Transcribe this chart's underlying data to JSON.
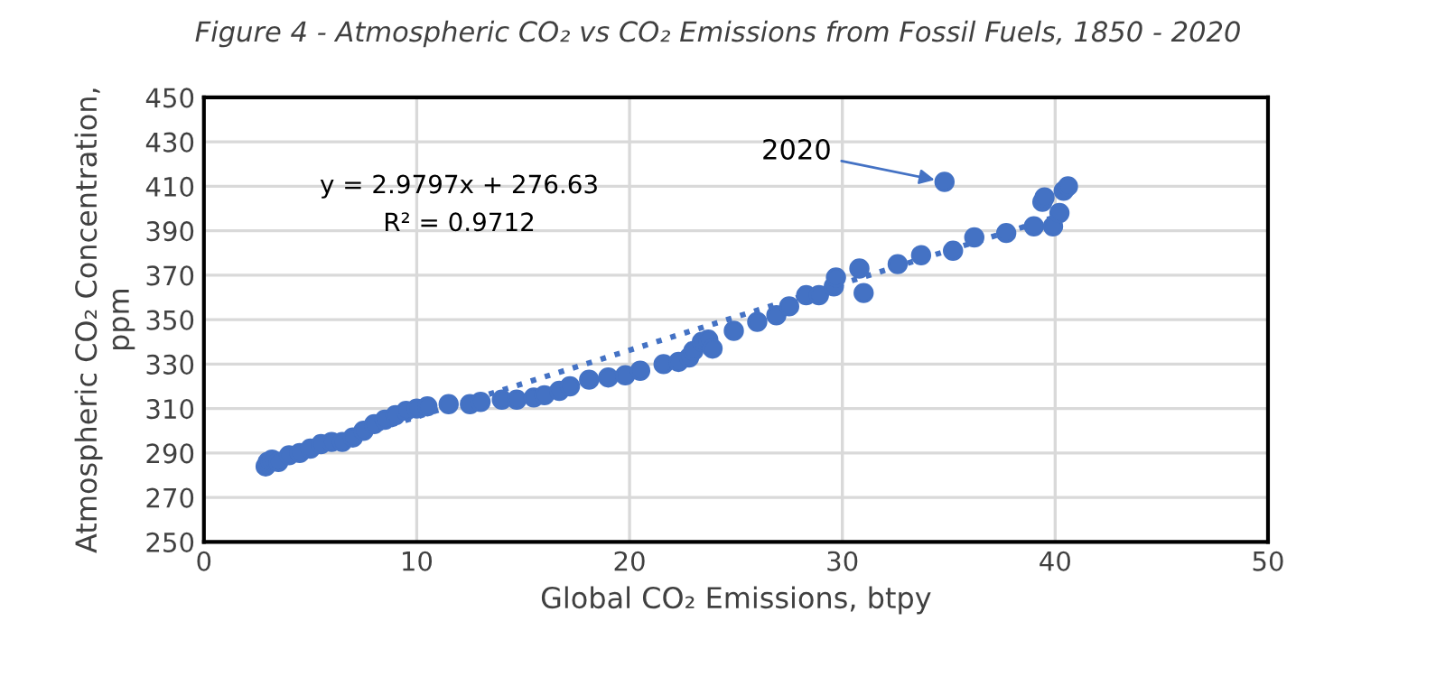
{
  "chart_data": {
    "type": "scatter",
    "title": "Figure 4 - Atmospheric CO₂ vs CO₂ Emissions from Fossil Fuels, 1850 - 2020",
    "xlabel": "Global CO₂ Emissions, btpy",
    "ylabel": "Atmospheric CO₂ Concentration,\nppm",
    "series": [
      {
        "color": "#4472c4",
        "x": [
          2.9,
          3.0,
          3.2,
          3.5,
          4.0,
          4.5,
          5.0,
          5.5,
          6.0,
          6.5,
          7.0,
          7.5,
          8.0,
          8.5,
          9.0,
          9.5,
          10.0,
          10.5,
          11.5,
          12.5,
          13.0,
          14.0,
          14.7,
          15.5,
          16.0,
          16.7,
          17.2,
          18.1,
          19.0,
          19.8,
          20.5,
          21.6,
          22.3,
          22.8,
          23.0,
          23.4,
          23.7,
          23.9,
          24.9,
          26.0,
          26.9,
          27.5,
          28.3,
          28.9,
          29.6,
          29.7,
          30.8,
          31.0,
          32.6,
          33.7,
          34.8,
          35.2,
          36.2,
          37.7,
          39.0,
          39.4,
          39.5,
          39.9,
          40.2,
          40.4,
          40.6
        ],
        "values": [
          284,
          286,
          287,
          286,
          289,
          290,
          292,
          294,
          295,
          295,
          297,
          300,
          303,
          305,
          307,
          309,
          310,
          311,
          312,
          312,
          313,
          314,
          314,
          315,
          316,
          318,
          320,
          323,
          324,
          325,
          327,
          330,
          331,
          333,
          336,
          340,
          341,
          337,
          345,
          349,
          352,
          356,
          361,
          361,
          365,
          369,
          373,
          362,
          375,
          379,
          412,
          381,
          387,
          389,
          392,
          403,
          405,
          392,
          398,
          408,
          410
        ]
      },
      {
        "type": "line",
        "color": "#4472c4",
        "line_style": "dotted",
        "marker": "none",
        "x": [
          2.9,
          40.6
        ],
        "values": [
          285,
          398
        ]
      }
    ],
    "xlim": [
      0,
      50
    ],
    "xticks": [
      0,
      10,
      20,
      30,
      40,
      50
    ],
    "ylim": [
      250,
      450
    ],
    "yticks": [
      250,
      270,
      290,
      310,
      330,
      350,
      370,
      390,
      410,
      430,
      450
    ],
    "grid": true,
    "marker": "circle",
    "legend": false,
    "annotations": [
      "y = 2.9797x + 276.63",
      "R² = 0.9712",
      {
        "text": "2020",
        "x": 34.8,
        "y": 412
      }
    ]
  }
}
